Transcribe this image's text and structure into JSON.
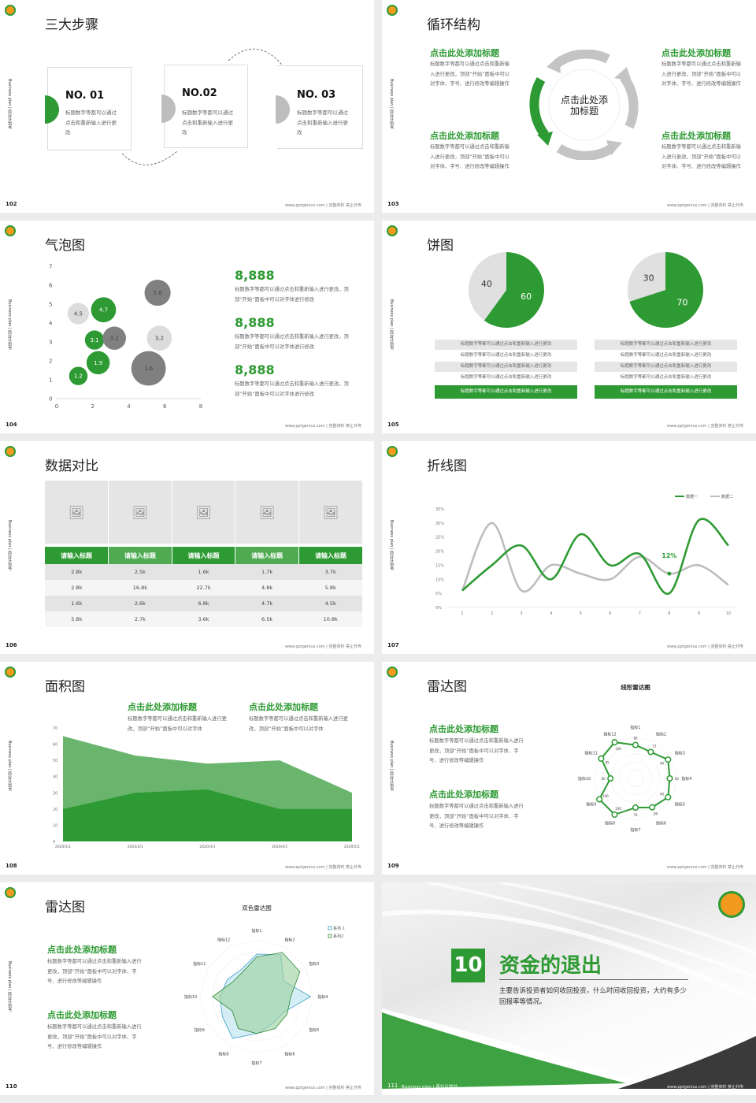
{
  "common": {
    "side_label": "Business plan | 商业计划书",
    "footer": "www.pptgenius.com | 完整资料 禁止外传",
    "accent": "#2e9a33",
    "gray": "#bdbdbd"
  },
  "s102": {
    "page": "102",
    "title": "三大步骤",
    "steps": [
      {
        "label": "NO. 01",
        "text": "标题数字等都可以通过点击和重新输入进行更改"
      },
      {
        "label": "NO.02",
        "text": "标题数字等都可以通过点击和重新输入进行更改"
      },
      {
        "label": "NO. 03",
        "text": "标题数字等都可以通过点击和重新输入进行更改"
      }
    ]
  },
  "s103": {
    "page": "103",
    "title": "循环结构",
    "center": "点击此处添加标题",
    "blocks": [
      {
        "heading": "点击此处添加标题",
        "text": "标题数字等都可以通过点击和重新输入进行更改，顶部“开始”面板中可以对字体、字号、进行修改等编辑操作"
      },
      {
        "heading": "点击此处添加标题",
        "text": "标题数字等都可以通过点击和重新输入进行更改，顶部“开始”面板中可以对字体、字号、进行修改等编辑操作"
      },
      {
        "heading": "点击此处添加标题",
        "text": "标题数字等都可以通过点击和重新输入进行更改，顶部“开始”面板中可以对字体、字号、进行修改等编辑操作"
      },
      {
        "heading": "点击此处添加标题",
        "text": "标题数字等都可以通过点击和重新输入进行更改，顶部“开始”面板中可以对字体、字号、进行修改等编辑操作"
      }
    ]
  },
  "s104": {
    "page": "104",
    "title": "气泡图",
    "stats": [
      {
        "value": "8,888",
        "text": "标题数字等都可以通过点击和重新输入进行更改，顶部“开始”面板中可以对字体进行修改"
      },
      {
        "value": "8,888",
        "text": "标题数字等都可以通过点击和重新输入进行更改，顶部“开始”面板中可以对字体进行修改"
      },
      {
        "value": "8,888",
        "text": "标题数字等都可以通过点击和重新输入进行更改，顶部“开始”面板中可以对字体进行修改"
      }
    ]
  },
  "s105": {
    "page": "105",
    "title": "饼图",
    "list_text": "标题数字等都可以通过点击和重新输入进行更改"
  },
  "s106": {
    "page": "106",
    "title": "数据对比",
    "image_icon": "image-placeholder-icon",
    "headers": [
      "请输入标题",
      "请输入标题",
      "请输入标题",
      "请输入标题",
      "请输入标题"
    ],
    "rows": [
      [
        "2.8k",
        "2.5k",
        "1.6k",
        "1.7k",
        "3.7k"
      ],
      [
        "2.8k",
        "16.8k",
        "22.7k",
        "4.8k",
        "5.8k"
      ],
      [
        "1.6k",
        "2.6k",
        "6.8k",
        "4.7k",
        "4.5k"
      ],
      [
        "5.8k",
        "2.7k",
        "3.6k",
        "6.5k",
        "10.8k"
      ]
    ]
  },
  "s107": {
    "page": "107",
    "title": "折线图"
  },
  "s108": {
    "page": "108",
    "title": "面积图",
    "blocks": [
      {
        "heading": "点击此处添加标题",
        "text": "标题数字等都可以通过点击和重新输入进行更改，顶部“开始”面板中可以对字体"
      },
      {
        "heading": "点击此处添加标题",
        "text": "标题数字等都可以通过点击和重新输入进行更改，顶部“开始”面板中可以对字体"
      }
    ]
  },
  "s109": {
    "page": "109",
    "title": "雷达图",
    "blocks": [
      {
        "heading": "点击此处添加标题",
        "text": "标题数字等都可以通过点击和重新输入进行更改，顶部“开始”面板中可以对字体、字号、进行修改等编辑操作"
      },
      {
        "heading": "点击此处添加标题",
        "text": "标题数字等都可以通过点击和重新输入进行更改，顶部“开始”面板中可以对字体、字号、进行修改等编辑操作"
      }
    ]
  },
  "s110": {
    "page": "110",
    "title": "雷达图",
    "blocks": [
      {
        "heading": "点击此处添加标题",
        "text": "标题数字等都可以通过点击和重新输入进行更改，顶部“开始”面板中可以对字体、字号、进行修改等编辑操作"
      },
      {
        "heading": "点击此处添加标题",
        "text": "标题数字等都可以通过点击和重新输入进行更改，顶部“开始”面板中可以对字体、字号、进行修改等编辑操作"
      }
    ]
  },
  "s111": {
    "page": "111",
    "number": "10",
    "title": "资金的退出",
    "text": "主要告诉投资者如何收回投资，什么时间收回投资，大约有多少回报率等情况。",
    "bottom_label": "Business plan | 商业计划书"
  },
  "chart_data": [
    {
      "type": "scatter",
      "subtype": "bubble",
      "xlim": [
        0,
        8
      ],
      "ylim": [
        0,
        7
      ],
      "xticks": [
        "0",
        "2",
        "4",
        "6",
        "8"
      ],
      "yticks": [
        "0",
        "1",
        "2",
        "3",
        "4",
        "5",
        "6",
        "7"
      ],
      "points": [
        {
          "x": 1.2,
          "y": 1.2,
          "size": 1.2,
          "label": "1.2",
          "color": "#2e9a33"
        },
        {
          "x": 2.3,
          "y": 1.9,
          "size": 1.9,
          "label": "1.9",
          "color": "#2e9a33"
        },
        {
          "x": 2.1,
          "y": 3.1,
          "size": 1.3,
          "label": "3.1",
          "color": "#2e9a33"
        },
        {
          "x": 2.6,
          "y": 4.7,
          "size": 2.2,
          "label": "4.7",
          "color": "#2e9a33"
        },
        {
          "x": 1.2,
          "y": 4.5,
          "size": 1.6,
          "label": "4.5",
          "color": "#dcdcdc"
        },
        {
          "x": 5.7,
          "y": 3.2,
          "size": 2.2,
          "label": "3.2",
          "color": "#dcdcdc"
        },
        {
          "x": 3.2,
          "y": 3.2,
          "size": 1.9,
          "label": "3.2",
          "color": "#808080"
        },
        {
          "x": 5.6,
          "y": 5.6,
          "size": 2.4,
          "label": "5.6",
          "color": "#808080"
        },
        {
          "x": 5.1,
          "y": 1.6,
          "size": 4.2,
          "label": "1.6",
          "color": "#808080"
        }
      ]
    },
    {
      "type": "pie",
      "pies": [
        {
          "values": [
            60,
            40
          ],
          "labels": [
            "60",
            "40"
          ],
          "colors": [
            "#2e9a33",
            "#e0e0e0"
          ]
        },
        {
          "values": [
            70,
            30
          ],
          "labels": [
            "70",
            "30"
          ],
          "colors": [
            "#2e9a33",
            "#e0e0e0"
          ]
        }
      ]
    },
    {
      "type": "line",
      "x": [
        "1",
        "2",
        "3",
        "4",
        "5",
        "6",
        "7",
        "8",
        "9",
        "10"
      ],
      "yticks": [
        "0%",
        "5%",
        "10%",
        "15%",
        "20%",
        "25%",
        "30%",
        "35%"
      ],
      "ylim": [
        0,
        35
      ],
      "legend": "top-right",
      "series": [
        {
          "name": "数据一",
          "color": "#2e9a33",
          "values": [
            6,
            15,
            22,
            10,
            26,
            15,
            19,
            5,
            31,
            22
          ]
        },
        {
          "name": "数据二",
          "color": "#bdbdbd",
          "values": [
            6,
            30,
            6,
            15,
            12,
            10,
            18,
            12,
            15,
            8
          ]
        }
      ],
      "annotation": {
        "x": "8",
        "value": 12,
        "label": "12%"
      }
    },
    {
      "type": "area",
      "x": [
        "2020/1/1",
        "2020/2/1",
        "2020/3/1",
        "2020/4/1",
        "2020/5/1"
      ],
      "yticks": [
        "0",
        "10",
        "20",
        "30",
        "40",
        "50",
        "60",
        "70"
      ],
      "ylim": [
        0,
        70
      ],
      "series": [
        {
          "color": "#6ab56d",
          "values": [
            65,
            53,
            48,
            50,
            30
          ]
        },
        {
          "color": "#2e9a33",
          "values": [
            20,
            30,
            32,
            20,
            20
          ]
        }
      ]
    },
    {
      "type": "radar",
      "title": "线形雷达图",
      "axes": [
        "指标1",
        "指标2",
        "指标3",
        "指标4",
        "指标5",
        "指标6",
        "指标7",
        "指标8",
        "指标9",
        "指标10",
        "指标11",
        "指标12"
      ],
      "rmax": 100,
      "series": [
        {
          "color": "#2e9a33",
          "values": [
            80,
            73,
            90,
            82,
            90,
            80,
            70,
            100,
            100,
            60,
            95,
            100
          ]
        }
      ]
    },
    {
      "type": "radar",
      "title": "双色雷达图",
      "axes": [
        "指标1",
        "指标2",
        "指标3",
        "指标4",
        "指标5",
        "指标6",
        "指标7",
        "指标8",
        "指标9",
        "指标10",
        "指标11",
        "指标12"
      ],
      "rmax": 100,
      "legend": "top-right",
      "series": [
        {
          "name": "系列 1",
          "color": "#3aa0c8",
          "fill": "#bfe3ef",
          "values": [
            75,
            85,
            55,
            95,
            55,
            55,
            65,
            85,
            70,
            65,
            60,
            55
          ]
        },
        {
          "name": "系列2",
          "color": "#2e8a3a",
          "fill": "#9fd3a3",
          "values": [
            70,
            90,
            88,
            60,
            62,
            65,
            65,
            65,
            50,
            78,
            50,
            50
          ]
        }
      ]
    }
  ]
}
